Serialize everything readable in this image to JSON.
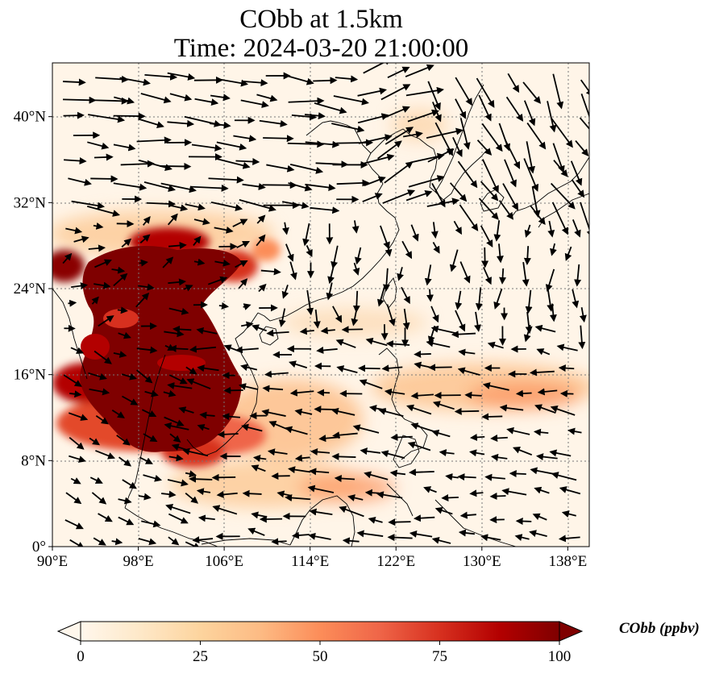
{
  "title": {
    "line1": "CObb at 1.5km",
    "line2": "Time: 2024-03-20 21:00:00"
  },
  "map": {
    "lon_range": [
      90,
      140
    ],
    "lat_range": [
      0,
      45
    ],
    "lon_ticks": [
      "90°E",
      "98°E",
      "106°E",
      "114°E",
      "122°E",
      "130°E",
      "138°E"
    ],
    "lon_tick_values": [
      90,
      98,
      106,
      114,
      122,
      130,
      138
    ],
    "lat_ticks": [
      "0°",
      "8°N",
      "16°N",
      "24°N",
      "32°N",
      "40°N"
    ],
    "lat_tick_values": [
      0,
      8,
      16,
      24,
      32,
      40
    ],
    "gridlines": "dotted"
  },
  "colorbar": {
    "label": "CObb (ppbv)",
    "ticks": [
      "0",
      "25",
      "50",
      "75",
      "100"
    ],
    "tick_values": [
      0,
      25,
      50,
      75,
      100
    ],
    "range": [
      0,
      100
    ],
    "colormap": "OrRd",
    "extend": "both",
    "colors": [
      "#fff7ec",
      "#fee8c8",
      "#fdd49e",
      "#fdbb84",
      "#fc8d59",
      "#ef6548",
      "#d7301f",
      "#b30000",
      "#7f0000"
    ]
  }
}
